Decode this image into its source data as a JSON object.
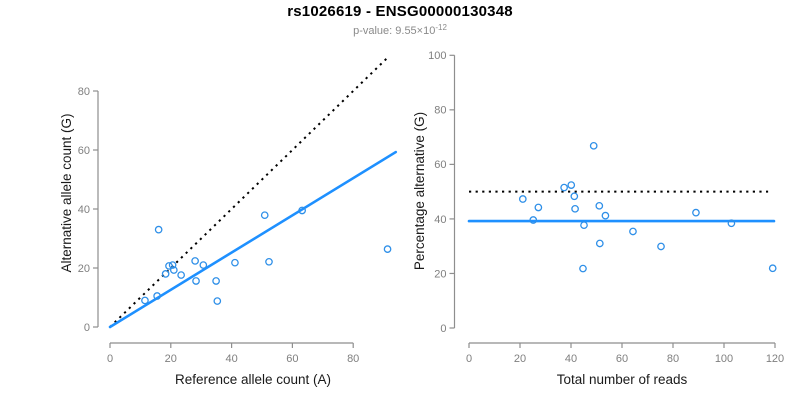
{
  "header": {
    "title": "rs1026619 - ENSG00000130348",
    "p_value_prefix": "p-value: 9.55×10",
    "p_value_exponent": "-12"
  },
  "colors": {
    "accent_blue": "#1E90FF",
    "point_blue": "#2E8FE8",
    "axis_gray": "#8e8e8e",
    "tick_label_gray": "#7f7f7f",
    "axis_title_black": "#1a1a1a",
    "subtitle_gray": "#8a8a8a",
    "dotted_black": "#000000"
  },
  "chart_data": [
    {
      "name": "allele-counts-panel",
      "type": "scatter",
      "title": "",
      "xlabel": "Reference allele count (A)",
      "ylabel": "Alternative allele count (G)",
      "xlim": [
        0,
        94
      ],
      "ylim": [
        0,
        92
      ],
      "x_ticks": [
        0,
        20,
        40,
        60,
        80
      ],
      "y_ticks": [
        0,
        20,
        40,
        60,
        80
      ],
      "grid": false,
      "legend": null,
      "points": [
        [
          11.5,
          9.0
        ],
        [
          15.5,
          10.5
        ],
        [
          16,
          33
        ],
        [
          18.3,
          18.0
        ],
        [
          19.4,
          20.7
        ],
        [
          20.6,
          21.0
        ],
        [
          21.0,
          19.3
        ],
        [
          23.4,
          17.6
        ],
        [
          28.0,
          22.4
        ],
        [
          28.3,
          15.6
        ],
        [
          30.7,
          21.0
        ],
        [
          34.9,
          15.6
        ],
        [
          35.3,
          8.8
        ],
        [
          41.1,
          21.8
        ],
        [
          50.9,
          37.9
        ],
        [
          52.3,
          22.1
        ],
        [
          63.2,
          39.5
        ],
        [
          91.3,
          26.4
        ]
      ],
      "lines": [
        {
          "name": "identity-line",
          "style": "dotted",
          "color": "#000000",
          "from": [
            0,
            0
          ],
          "to": [
            91.5,
            91.5
          ]
        },
        {
          "name": "fit-line",
          "style": "solid",
          "color": "#1E90FF",
          "from": [
            0,
            0
          ],
          "to": [
            94,
            59.3
          ]
        }
      ]
    },
    {
      "name": "percentage-by-depth-panel",
      "type": "scatter",
      "title": "",
      "xlabel": "Total number of reads",
      "ylabel": "Percentage alternative (G)",
      "xlim": [
        0,
        120
      ],
      "ylim": [
        0,
        100
      ],
      "x_ticks": [
        0,
        20,
        40,
        60,
        80,
        100,
        120
      ],
      "y_ticks": [
        0,
        20,
        40,
        60,
        80,
        100
      ],
      "grid": false,
      "legend": null,
      "points": [
        [
          21.1,
          47.3
        ],
        [
          25.2,
          39.6
        ],
        [
          27.2,
          44.2
        ],
        [
          37.3,
          51.5
        ],
        [
          40.1,
          52.4
        ],
        [
          41.3,
          48.3
        ],
        [
          41.6,
          43.7
        ],
        [
          45.1,
          37.7
        ],
        [
          44.7,
          21.8
        ],
        [
          48.9,
          66.8
        ],
        [
          51.1,
          44.8
        ],
        [
          51.3,
          31.0
        ],
        [
          53.5,
          41.2
        ],
        [
          64.3,
          35.4
        ],
        [
          75.3,
          29.9
        ],
        [
          89.0,
          42.3
        ],
        [
          102.9,
          38.4
        ],
        [
          119.1,
          21.9
        ]
      ],
      "lines": [
        {
          "name": "expected-50-percent-line",
          "style": "dotted",
          "color": "#000000",
          "from": [
            0,
            50
          ],
          "to": [
            117.3,
            50
          ]
        },
        {
          "name": "mean-percentage-line",
          "style": "solid",
          "color": "#1E90FF",
          "from": [
            0,
            39.2
          ],
          "to": [
            119.6,
            39.2
          ]
        }
      ]
    }
  ]
}
